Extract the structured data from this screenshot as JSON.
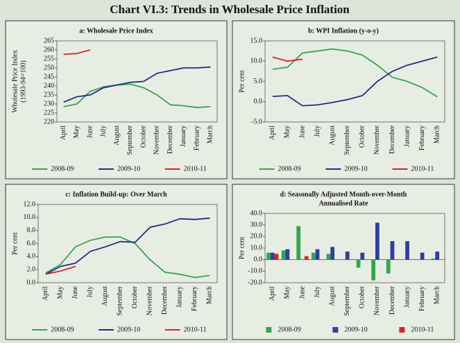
{
  "title": "Chart VI.3: Trends in Wholesale Price Inflation",
  "chart_data": [
    {
      "type": "line",
      "title": "a: Wholesale Price Index",
      "ylabel": [
        "Wholesale Price Index",
        "(1993-94=100)"
      ],
      "categories": [
        "April",
        "May",
        "June",
        "July",
        "August",
        "September",
        "October",
        "November",
        "December",
        "January",
        "February",
        "March"
      ],
      "ylim": [
        220,
        265
      ],
      "yticks": [
        220,
        225,
        230,
        235,
        240,
        245,
        250,
        255,
        260,
        265
      ],
      "series": [
        {
          "name": "2008-09",
          "color": "#2ea84a",
          "values": [
            228.5,
            230,
            237,
            239.5,
            240.5,
            241,
            239,
            235,
            229.5,
            229,
            228,
            228.5
          ]
        },
        {
          "name": "2009-10",
          "color": "#1f2a8c",
          "values": [
            231,
            234,
            235,
            239,
            240.5,
            242,
            242.5,
            247,
            248.5,
            250,
            250,
            250.5
          ]
        },
        {
          "name": "2010-11",
          "color": "#e02020",
          "values": [
            257.5,
            258,
            260,
            null,
            null,
            null,
            null,
            null,
            null,
            null,
            null,
            null
          ]
        }
      ]
    },
    {
      "type": "line",
      "title": "b: WPI Inflation (y-o-y)",
      "ylabel": [
        "Per cent"
      ],
      "categories": [
        "April",
        "May",
        "June",
        "July",
        "August",
        "September",
        "October",
        "November",
        "December",
        "January",
        "February",
        "March"
      ],
      "ylim": [
        -5,
        15
      ],
      "yticks": [
        {
          "value": -5,
          "label": "-5.0"
        },
        {
          "value": 0,
          "label": "0.0"
        },
        {
          "value": 5,
          "label": "5.0"
        },
        {
          "value": 10,
          "label": "10.0"
        },
        {
          "value": 15,
          "label": "15.0"
        }
      ],
      "series": [
        {
          "name": "2008-09",
          "color": "#2ea84a",
          "values": [
            8,
            8.5,
            12,
            12.5,
            13,
            12.5,
            11.5,
            9,
            6,
            5,
            3.5,
            1.2
          ]
        },
        {
          "name": "2009-10",
          "color": "#1f2a8c",
          "values": [
            1.3,
            1.5,
            -1,
            -0.8,
            -0.2,
            0.5,
            1.5,
            5,
            7.5,
            9,
            10,
            11
          ]
        },
        {
          "name": "2010-11",
          "color": "#e02020",
          "values": [
            11,
            10,
            10.5,
            null,
            null,
            null,
            null,
            null,
            null,
            null,
            null,
            null
          ]
        }
      ]
    },
    {
      "type": "line",
      "title": "c: Inflation Build-up: Over March",
      "ylabel": [
        "Per cent"
      ],
      "categories": [
        "April",
        "May",
        "June",
        "July",
        "August",
        "September",
        "October",
        "November",
        "December",
        "January",
        "February",
        "March"
      ],
      "ylim": [
        0,
        12
      ],
      "yticks": [
        {
          "value": 0,
          "label": "0.0"
        },
        {
          "value": 2,
          "label": "2.0"
        },
        {
          "value": 4,
          "label": "4.0"
        },
        {
          "value": 6,
          "label": "6.0"
        },
        {
          "value": 8,
          "label": "8.0"
        },
        {
          "value": 10,
          "label": "10.0"
        },
        {
          "value": 12,
          "label": "12.0"
        }
      ],
      "series": [
        {
          "name": "2008-09",
          "color": "#2ea84a",
          "values": [
            1.5,
            2.8,
            5.5,
            6.5,
            7,
            7,
            6,
            3.5,
            1.6,
            1.3,
            0.8,
            1.1
          ]
        },
        {
          "name": "2009-10",
          "color": "#1f2a8c",
          "values": [
            1.3,
            2.5,
            3,
            4.8,
            5.5,
            6.3,
            6.2,
            8.5,
            9,
            9.8,
            9.7,
            9.9
          ]
        },
        {
          "name": "2010-11",
          "color": "#e02020",
          "values": [
            1.3,
            1.8,
            2.5,
            null,
            null,
            null,
            null,
            null,
            null,
            null,
            null,
            null
          ]
        }
      ]
    },
    {
      "type": "bar",
      "title": [
        "d: Seasonally Adjusted  Month-over-Month",
        "Annualised Rate"
      ],
      "ylabel": [
        "Per cent"
      ],
      "categories": [
        "April",
        "May",
        "June",
        "July",
        "August",
        "September",
        "October",
        "November",
        "December",
        "January",
        "February",
        "March"
      ],
      "ylim": [
        -20,
        40
      ],
      "yticks": [
        {
          "value": -20,
          "label": "-20.0"
        },
        {
          "value": -10,
          "label": "-10.0"
        },
        {
          "value": 0,
          "label": "0.0"
        },
        {
          "value": 10,
          "label": "10.0"
        },
        {
          "value": 20,
          "label": "20.0"
        },
        {
          "value": 30,
          "label": "30.0"
        },
        {
          "value": 40,
          "label": "40.0"
        }
      ],
      "series": [
        {
          "name": "2008-09",
          "color": "#2ea84a",
          "values": [
            6,
            8,
            29,
            6,
            5,
            0,
            -7,
            -18,
            -12,
            0,
            0,
            1
          ]
        },
        {
          "name": "2009-10",
          "color": "#2a3fa8",
          "values": [
            6,
            9,
            0,
            9,
            11,
            7,
            6,
            32,
            16,
            16,
            6,
            7
          ]
        },
        {
          "name": "2010-11",
          "color": "#e02020",
          "values": [
            5,
            0,
            3,
            null,
            null,
            null,
            null,
            null,
            null,
            null,
            null,
            null
          ]
        }
      ]
    }
  ]
}
